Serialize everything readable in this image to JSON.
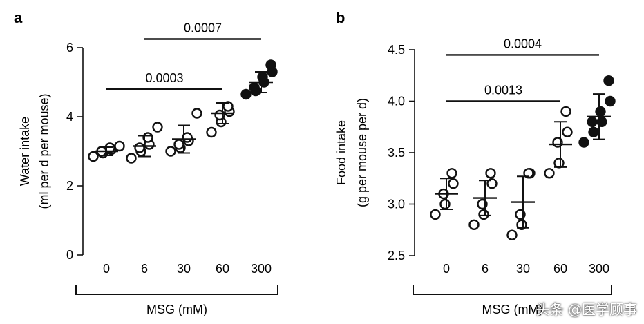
{
  "chart_data": [
    {
      "panel_label": "a",
      "type": "scatter",
      "title": "",
      "ylabel_line1": "Water intake",
      "ylabel_line2": "(ml per d per mouse)",
      "xlabel": "MSG (mM)",
      "categories": [
        "0",
        "6",
        "30",
        "60",
        "300"
      ],
      "ylim": [
        0,
        6
      ],
      "yticks": [
        "0",
        "2",
        "4",
        "6"
      ],
      "series": [
        {
          "category": "0",
          "filled": false,
          "points": [
            2.85,
            2.95,
            3.0,
            3.05,
            3.1,
            3.15
          ],
          "mean": 3.0,
          "sd": 0.12
        },
        {
          "category": "6",
          "filled": false,
          "points": [
            2.8,
            3.0,
            3.1,
            3.2,
            3.4,
            3.7
          ],
          "mean": 3.15,
          "sd": 0.3
        },
        {
          "category": "30",
          "filled": false,
          "points": [
            3.0,
            3.1,
            3.2,
            3.3,
            3.4,
            4.1
          ],
          "mean": 3.35,
          "sd": 0.4
        },
        {
          "category": "60",
          "filled": false,
          "points": [
            3.55,
            3.85,
            4.05,
            4.15,
            4.3
          ],
          "mean": 4.1,
          "sd": 0.3
        },
        {
          "category": "300",
          "filled": true,
          "points": [
            4.65,
            4.75,
            4.85,
            5.0,
            5.15,
            5.3,
            5.5
          ],
          "mean": 5.0,
          "sd": 0.3
        }
      ],
      "significance": [
        {
          "from": "0",
          "to": "60",
          "label": "0.0003",
          "y": 4.8
        },
        {
          "from": "6",
          "to": "300",
          "label": "0.0007",
          "y": 6.25
        }
      ]
    },
    {
      "panel_label": "b",
      "type": "scatter",
      "title": "",
      "ylabel_line1": "Food intake",
      "ylabel_line2": "(g per mouse per d)",
      "xlabel": "MSG (mM)",
      "categories": [
        "0",
        "6",
        "30",
        "60",
        "300"
      ],
      "ylim": [
        2.5,
        4.5
      ],
      "yticks": [
        "2.5",
        "3.0",
        "3.5",
        "4.0",
        "4.5"
      ],
      "series": [
        {
          "category": "0",
          "filled": false,
          "points": [
            2.9,
            3.0,
            3.1,
            3.2,
            3.3
          ],
          "mean": 3.1,
          "sd": 0.15
        },
        {
          "category": "6",
          "filled": false,
          "points": [
            2.8,
            2.9,
            3.0,
            3.2,
            3.3
          ],
          "mean": 3.06,
          "sd": 0.17
        },
        {
          "category": "30",
          "filled": false,
          "points": [
            2.7,
            2.8,
            2.9,
            3.3,
            3.3
          ],
          "mean": 3.02,
          "sd": 0.25
        },
        {
          "category": "60",
          "filled": false,
          "points": [
            3.3,
            3.4,
            3.6,
            3.7,
            3.9
          ],
          "mean": 3.58,
          "sd": 0.22
        },
        {
          "category": "300",
          "filled": true,
          "points": [
            3.6,
            3.7,
            3.8,
            3.8,
            3.9,
            4.0,
            4.2
          ],
          "mean": 3.85,
          "sd": 0.22
        }
      ],
      "significance": [
        {
          "from": "0",
          "to": "60",
          "label": "0.0013",
          "y": 4.0
        },
        {
          "from": "0",
          "to": "300",
          "label": "0.0004",
          "y": 4.45
        }
      ]
    }
  ],
  "watermark": "头条 @医学顾事"
}
